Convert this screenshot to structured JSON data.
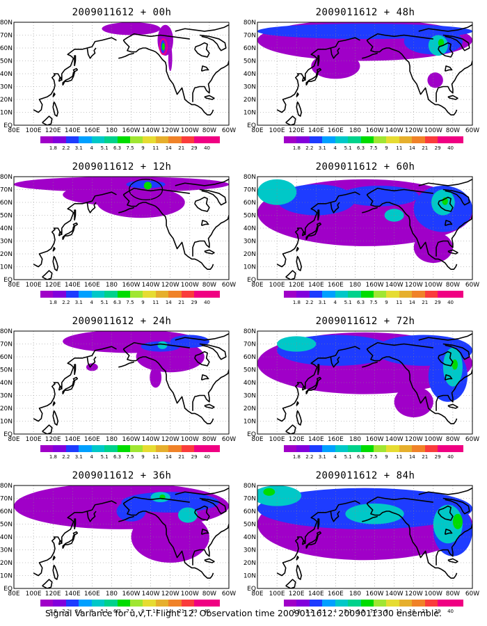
{
  "panels": [
    {
      "title": "2009011612 + 00h",
      "level": 0
    },
    {
      "title": "2009011612 + 48h",
      "level": 4
    },
    {
      "title": "2009011612 + 12h",
      "level": 1
    },
    {
      "title": "2009011612 + 60h",
      "level": 5
    },
    {
      "title": "2009011612 + 24h",
      "level": 2
    },
    {
      "title": "2009011612 + 72h",
      "level": 6
    },
    {
      "title": "2009011612 + 36h",
      "level": 3
    },
    {
      "title": "2009011612 + 84h",
      "level": 7
    }
  ],
  "lon_labels": [
    "80E",
    "100E",
    "120E",
    "140E",
    "160E",
    "180",
    "160W",
    "140W",
    "120W",
    "100W",
    "80W",
    "60W"
  ],
  "lat_labels": [
    "EQ",
    "10N",
    "20N",
    "30N",
    "40N",
    "50N",
    "60N",
    "70N",
    "80N"
  ],
  "colorbar": {
    "labels": [
      "1.8",
      "2.2",
      "3.1",
      "4",
      "5.1",
      "6.3",
      "7.5",
      "9",
      "11",
      "14",
      "21",
      "29",
      "40"
    ],
    "colors": [
      "#a000c8",
      "#8200dc",
      "#1e3cff",
      "#00a0ff",
      "#00c8c8",
      "#00d28c",
      "#00dc00",
      "#a0e632",
      "#e6dc32",
      "#e6af2d",
      "#f08228",
      "#fa3c3c",
      "#f00082"
    ]
  },
  "caption": "Signal Variance for u,v,T. Flight 12. Observation time 2009011612. 2009011300 ensemble."
}
